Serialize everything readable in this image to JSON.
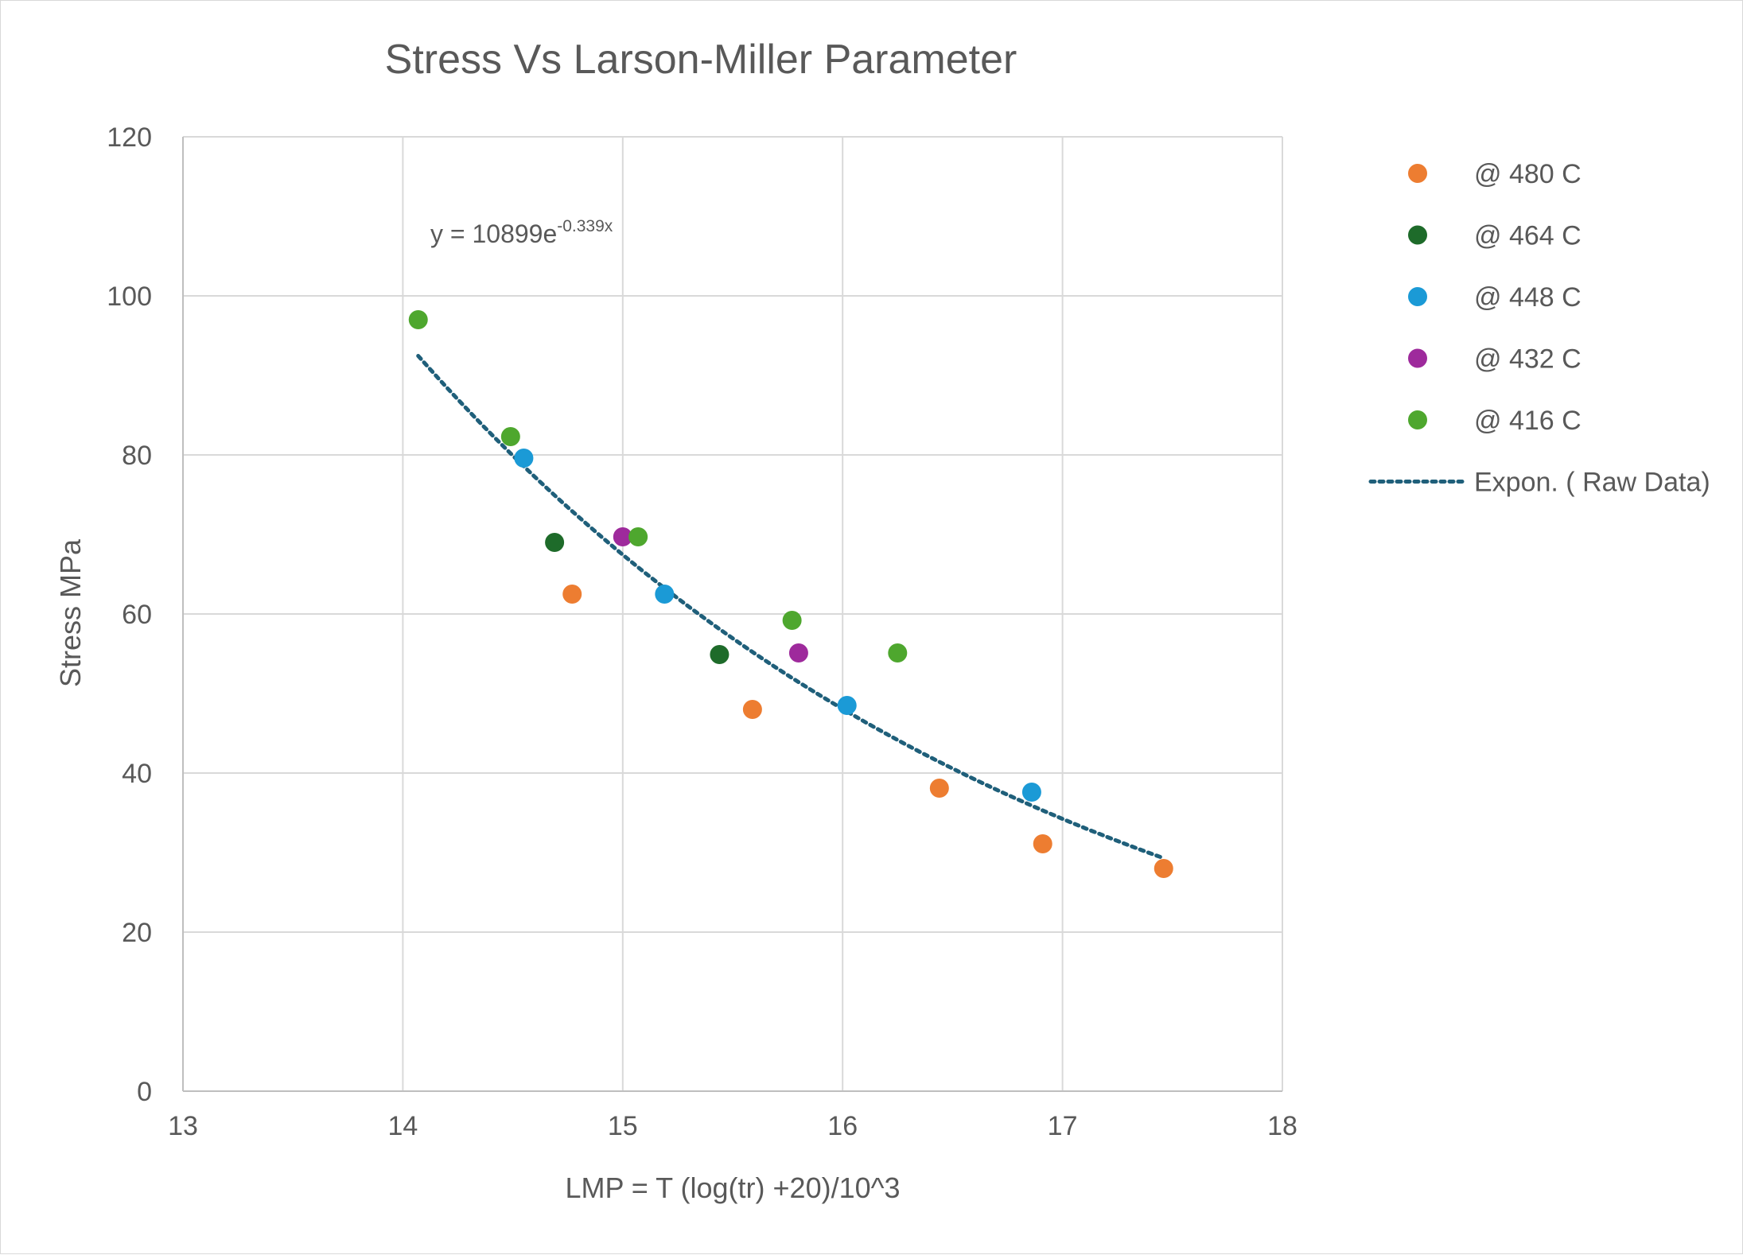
{
  "chart_data": {
    "type": "scatter",
    "title": "Stress Vs  Larson-Miller Parameter",
    "xlabel": "LMP = T (log(tr) +20)/10^3",
    "ylabel": "Stress MPa",
    "xlim": [
      13,
      18
    ],
    "ylim": [
      0,
      120
    ],
    "xticks": [
      13,
      14,
      15,
      16,
      17,
      18
    ],
    "yticks": [
      0,
      20,
      40,
      60,
      80,
      100,
      120
    ],
    "grid": true,
    "legend_position": "right",
    "series": [
      {
        "name": "@ 480 C",
        "color": "#ED7D31",
        "x": [
          14.77,
          15.59,
          16.44,
          16.91,
          17.46
        ],
        "y": [
          62.5,
          48.0,
          38.1,
          31.1,
          28.0
        ]
      },
      {
        "name": "@ 464 C",
        "color": "#1E6B2A",
        "x": [
          14.69,
          15.44
        ],
        "y": [
          69.0,
          54.9
        ]
      },
      {
        "name": "@ 448 C",
        "color": "#1B9AD6",
        "x": [
          14.55,
          15.19,
          16.02,
          16.86
        ],
        "y": [
          79.6,
          62.5,
          48.5,
          37.6
        ]
      },
      {
        "name": "@ 432 C",
        "color": "#9E2A9C",
        "x": [
          15.0,
          15.8
        ],
        "y": [
          69.7,
          55.1
        ]
      },
      {
        "name": "@ 416 C",
        "color": "#4EA72E",
        "x": [
          14.07,
          14.49,
          15.07,
          15.77,
          16.25
        ],
        "y": [
          97.0,
          82.3,
          69.7,
          59.2,
          55.1
        ]
      }
    ],
    "trendline": {
      "name": "Expon. ( Raw Data)",
      "type": "exponential",
      "equation_label": "y = 10899e",
      "equation_exponent": "-0.339x",
      "a": 10899,
      "b": -0.339,
      "x_range": [
        14.07,
        17.46
      ],
      "color": "#1F5F7A"
    }
  }
}
